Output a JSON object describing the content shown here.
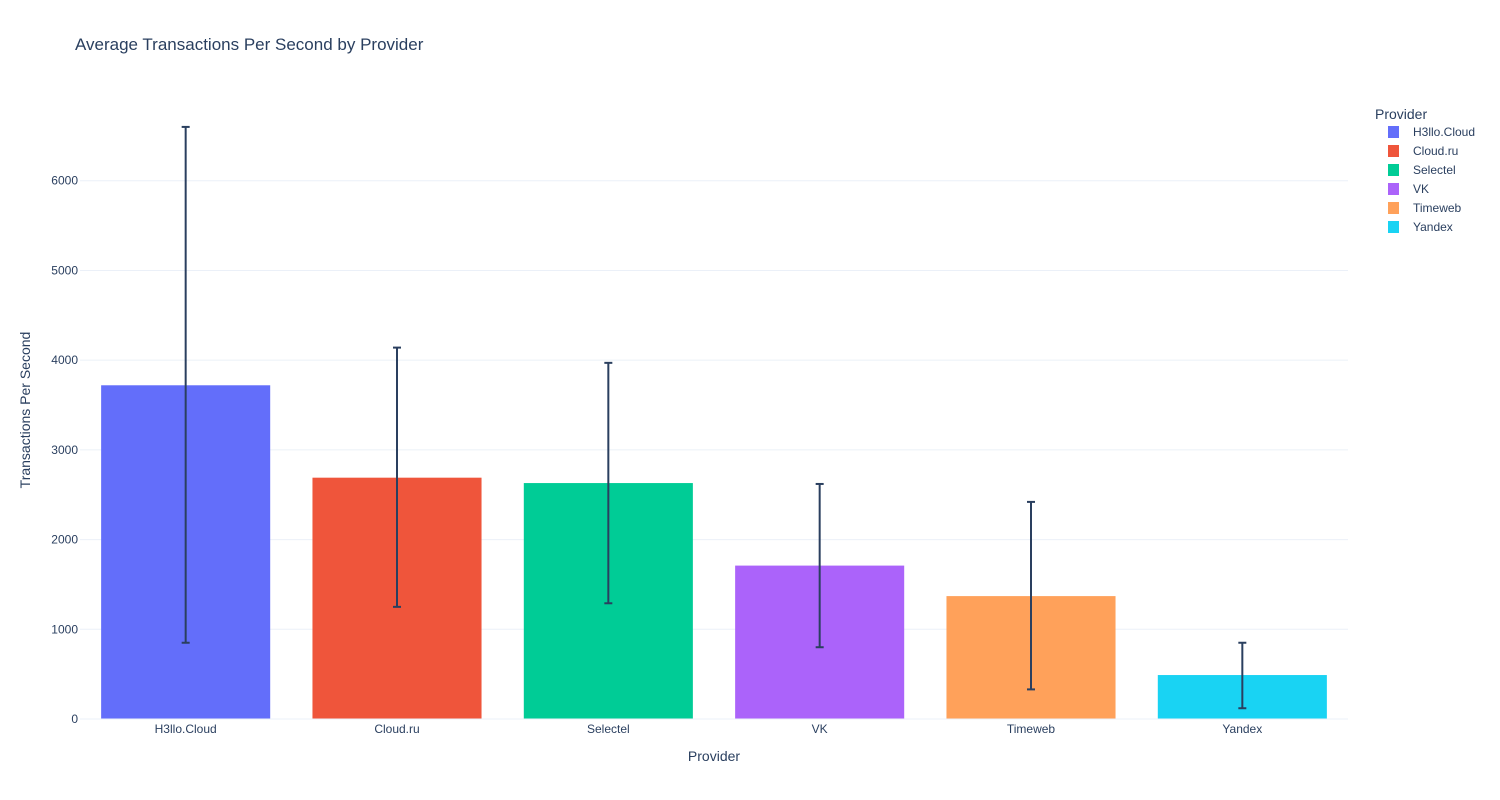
{
  "chart_data": {
    "type": "bar",
    "title": "Average Transactions Per Second by Provider",
    "xlabel": "Provider",
    "ylabel": "Transactions Per Second",
    "ylim": [
      0,
      6900
    ],
    "yticks": [
      0,
      1000,
      2000,
      3000,
      4000,
      5000,
      6000
    ],
    "categories": [
      "H3llo.Cloud",
      "Cloud.ru",
      "Selectel",
      "VK",
      "Timeweb",
      "Yandex"
    ],
    "values": [
      3720,
      2690,
      2630,
      1710,
      1370,
      490
    ],
    "error_upper": [
      6600,
      4140,
      3970,
      2620,
      2420,
      850
    ],
    "error_lower": [
      850,
      1250,
      1290,
      800,
      330,
      120
    ],
    "colors": [
      "#636efa",
      "#EF553B",
      "#00cc96",
      "#ab63fa",
      "#FFA15A",
      "#19d3f3"
    ],
    "grid": true,
    "legend": {
      "title": "Provider",
      "placement": "top-right",
      "entries": [
        "H3llo.Cloud",
        "Cloud.ru",
        "Selectel",
        "VK",
        "Timeweb",
        "Yandex"
      ]
    }
  }
}
